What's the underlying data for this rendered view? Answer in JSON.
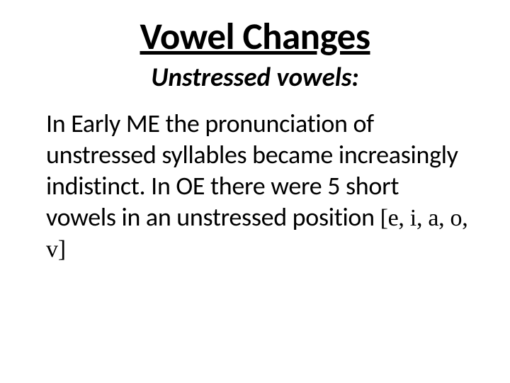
{
  "title": "Vowel Changes",
  "subtitle": "Unstressed vowels:",
  "body_text_start": "In Early ME the pronunciation of unstressed syllables became increasingly indistinct. In OE there were 5 short vowels in an unstressed position ",
  "phonetic_notation": "[e, i, a, o, v]",
  "styles": {
    "background_color": "#ffffff",
    "text_color": "#000000",
    "title_fontsize": 53,
    "subtitle_fontsize": 37,
    "body_fontsize": 36,
    "phonetic_fontsize": 34,
    "title_weight": "bold",
    "subtitle_weight": "bold",
    "subtitle_style": "italic",
    "title_decoration": "underline",
    "font_family": "Calibri",
    "phonetic_font_family": "cursive"
  }
}
